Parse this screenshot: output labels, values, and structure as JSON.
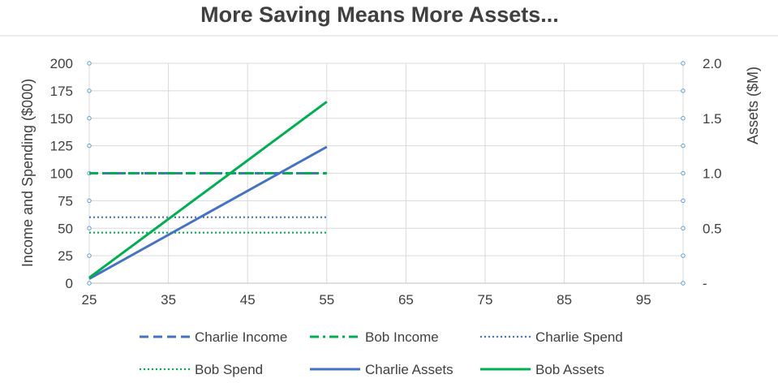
{
  "chart_data": {
    "type": "line",
    "title": "More Saving Means More Assets...",
    "xlabel": "",
    "ylabel": "Income and Spending ($000)",
    "y2label": "Assets ($M)",
    "xlim": [
      25,
      100
    ],
    "ylim": [
      0,
      200
    ],
    "y2lim": [
      0,
      2.0
    ],
    "xticks": [
      "25",
      "35",
      "45",
      "55",
      "65",
      "75",
      "85",
      "95"
    ],
    "yticks": [
      "0",
      "25",
      "50",
      "75",
      "100",
      "125",
      "150",
      "175",
      "200"
    ],
    "y2ticks": [
      "-",
      "0.5",
      "1.0",
      "1.5",
      "2.0"
    ],
    "grid": true,
    "legend_position": "bottom",
    "series": [
      {
        "name": "Charlie Income",
        "axis": "left",
        "color": "#4472C4",
        "style": "dash",
        "points": [
          [
            25,
            100
          ],
          [
            55,
            100
          ]
        ]
      },
      {
        "name": "Bob Income",
        "axis": "left",
        "color": "#00B050",
        "style": "dashdot",
        "points": [
          [
            25,
            100
          ],
          [
            55,
            100
          ]
        ]
      },
      {
        "name": "Charlie Spend",
        "axis": "left",
        "color": "#4472C4",
        "style": "dot",
        "points": [
          [
            25,
            60
          ],
          [
            55,
            60
          ]
        ]
      },
      {
        "name": "Bob Spend",
        "axis": "left",
        "color": "#00B050",
        "style": "dot",
        "points": [
          [
            25,
            46
          ],
          [
            55,
            46
          ]
        ]
      },
      {
        "name": "Charlie Assets",
        "axis": "right",
        "color": "#4472C4",
        "style": "solid",
        "points": [
          [
            25,
            0.04
          ],
          [
            55,
            1.24
          ]
        ]
      },
      {
        "name": "Bob Assets",
        "axis": "right",
        "color": "#00B050",
        "style": "solid",
        "points": [
          [
            25,
            0.05
          ],
          [
            55,
            1.65
          ]
        ]
      }
    ]
  }
}
